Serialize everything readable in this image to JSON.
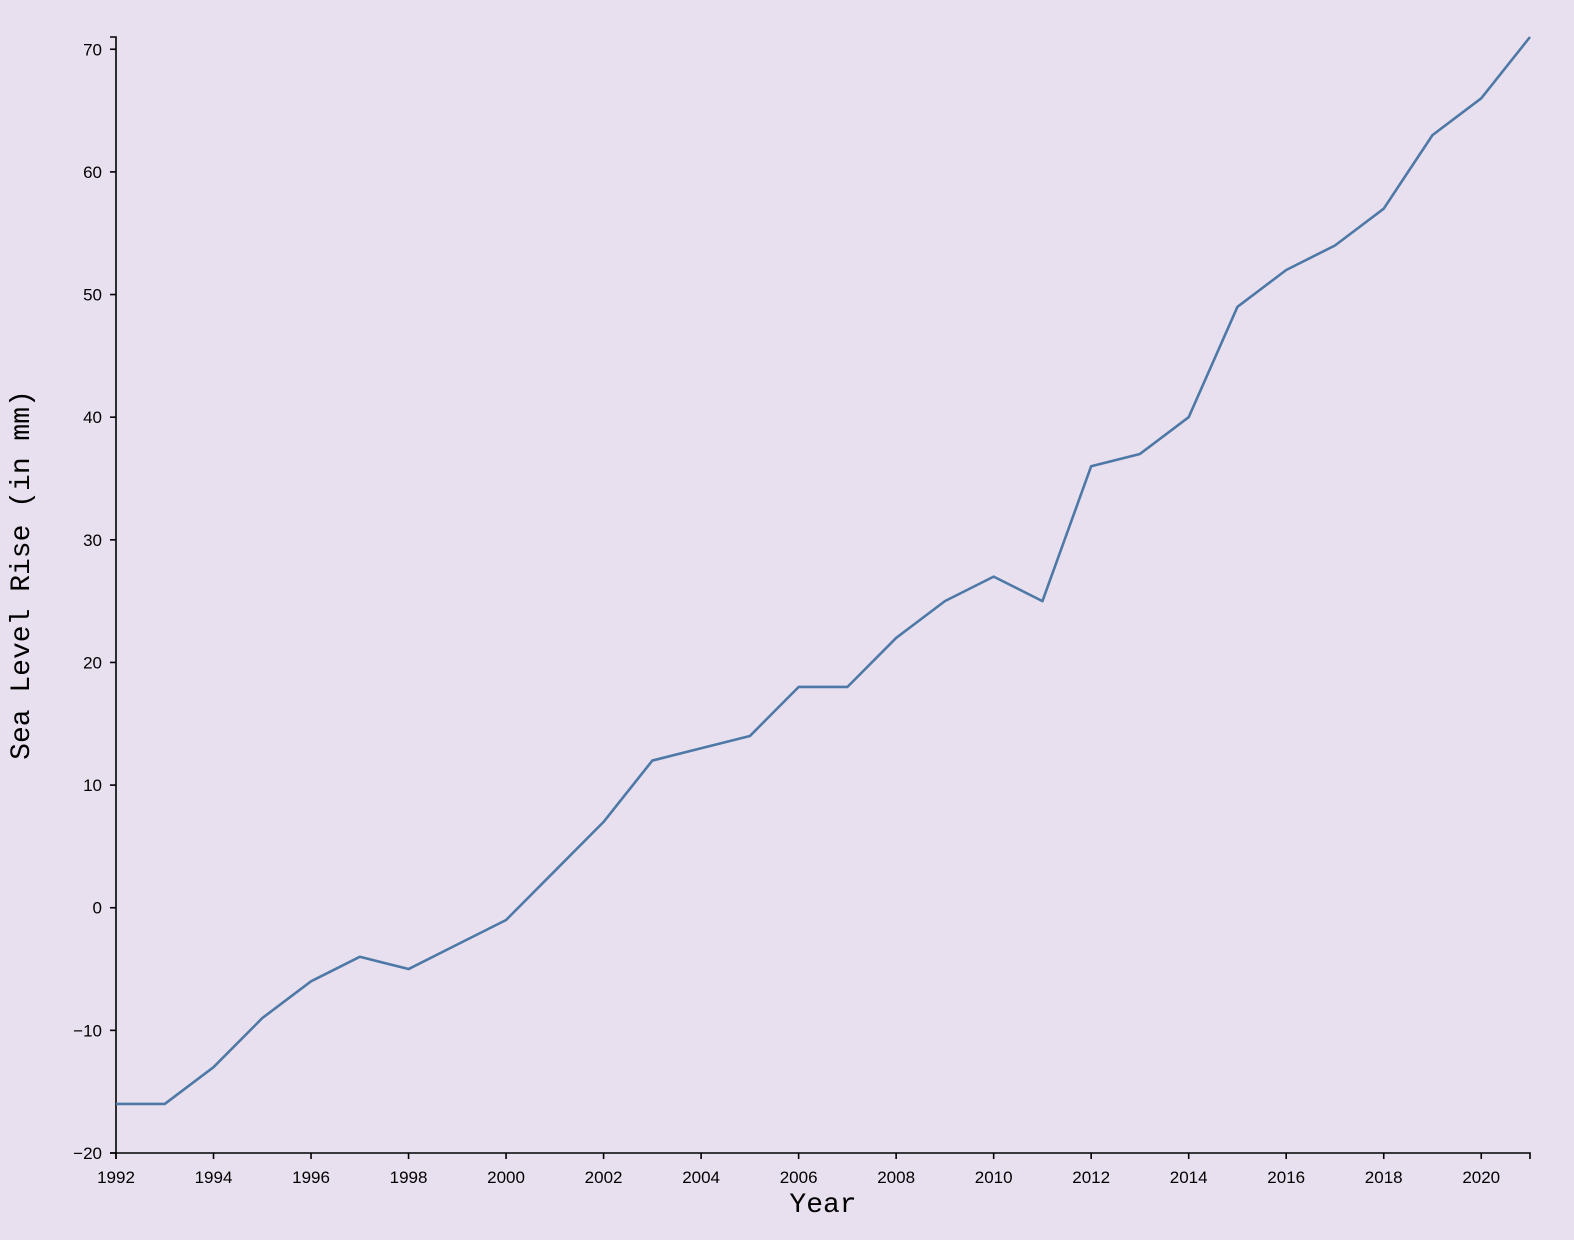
{
  "chart_data": {
    "type": "line",
    "xlabel": "Year",
    "ylabel": "Sea Level Rise (in mm)",
    "xlim": [
      1992,
      2021
    ],
    "ylim": [
      -20,
      71
    ],
    "x_ticks": [
      1992,
      1994,
      1996,
      1998,
      2000,
      2002,
      2004,
      2006,
      2008,
      2010,
      2012,
      2014,
      2016,
      2018,
      2020
    ],
    "y_ticks": [
      -20,
      -10,
      0,
      10,
      20,
      30,
      40,
      50,
      60,
      70
    ],
    "y_tick_labels": [
      "−20",
      "−10",
      "0",
      "10",
      "20",
      "30",
      "40",
      "50",
      "60",
      "70"
    ],
    "grid": false,
    "x": [
      1992,
      1993,
      1994,
      1995,
      1996,
      1997,
      1998,
      1999,
      2000,
      2001,
      2002,
      2003,
      2004,
      2005,
      2006,
      2007,
      2008,
      2009,
      2010,
      2011,
      2012,
      2013,
      2014,
      2015,
      2016,
      2017,
      2018,
      2019,
      2020,
      2021
    ],
    "series": [
      {
        "values": [
          -16,
          -16,
          -13,
          -9,
          -6,
          -4,
          -5,
          -3,
          -1,
          3,
          7,
          12,
          13,
          14,
          18,
          18,
          22,
          25,
          27,
          25,
          36,
          37,
          40,
          49,
          52,
          54,
          57,
          63,
          66,
          71
        ],
        "color": "#4e79a7"
      }
    ]
  },
  "colors": {
    "background": "#e9e0ef",
    "axis": "#000000",
    "line": "#4e79a7"
  }
}
